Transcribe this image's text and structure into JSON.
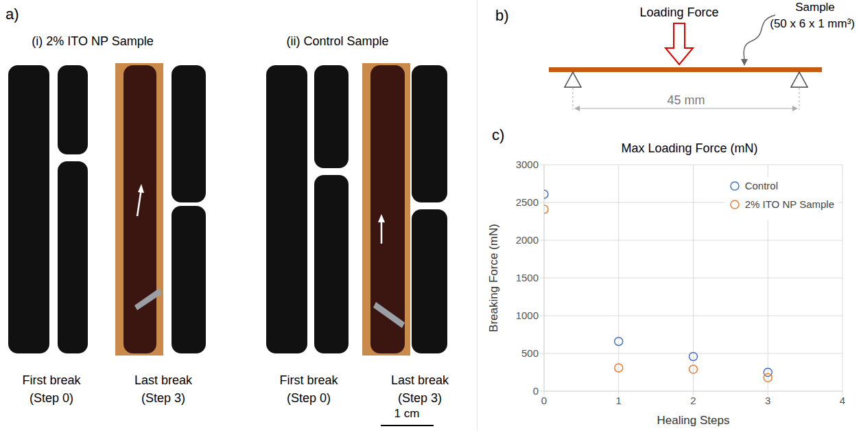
{
  "panels": {
    "a": {
      "letter": "a)",
      "groups": [
        {
          "title": "(i)  2% ITO NP Sample",
          "captions": [
            {
              "line1": "First break",
              "line2": "(Step 0)"
            },
            {
              "line1": "Last break",
              "line2": "(Step 3)"
            }
          ]
        },
        {
          "title": "(ii) Control Sample",
          "captions": [
            {
              "line1": "First break",
              "line2": "(Step 0)"
            },
            {
              "line1": "Last break",
              "line2": "(Step 3)"
            }
          ]
        }
      ],
      "scale_bar": "1 cm"
    },
    "b": {
      "letter": "b)",
      "force": "Loading Force",
      "sample": "Sample",
      "size": "(50 x 6 x 1 mm³)",
      "span": "45 mm"
    },
    "c": {
      "letter": "c)"
    }
  },
  "chart_data": {
    "type": "scatter",
    "title": "Max Loading Force (mN)",
    "x_label": "Healing Steps",
    "y_label": "Breaking Force (mN)",
    "x": [
      0,
      1,
      2,
      3
    ],
    "series": [
      {
        "name": "Control",
        "color": "#4472c4",
        "marker": "open_circle",
        "values": [
          2610,
          660,
          460,
          250
        ]
      },
      {
        "name": "2% ITO NP Sample",
        "color": "#ed7d31",
        "marker": "open_circle",
        "values": [
          2410,
          310,
          290,
          180
        ]
      }
    ],
    "xlim": [
      0,
      4
    ],
    "xticks": [
      0,
      1,
      2,
      3,
      4
    ],
    "ylim": [
      0,
      3000
    ],
    "yticks": [
      0,
      500,
      1000,
      1500,
      2000,
      2500,
      3000
    ],
    "grid": true,
    "legend": "upper right"
  }
}
